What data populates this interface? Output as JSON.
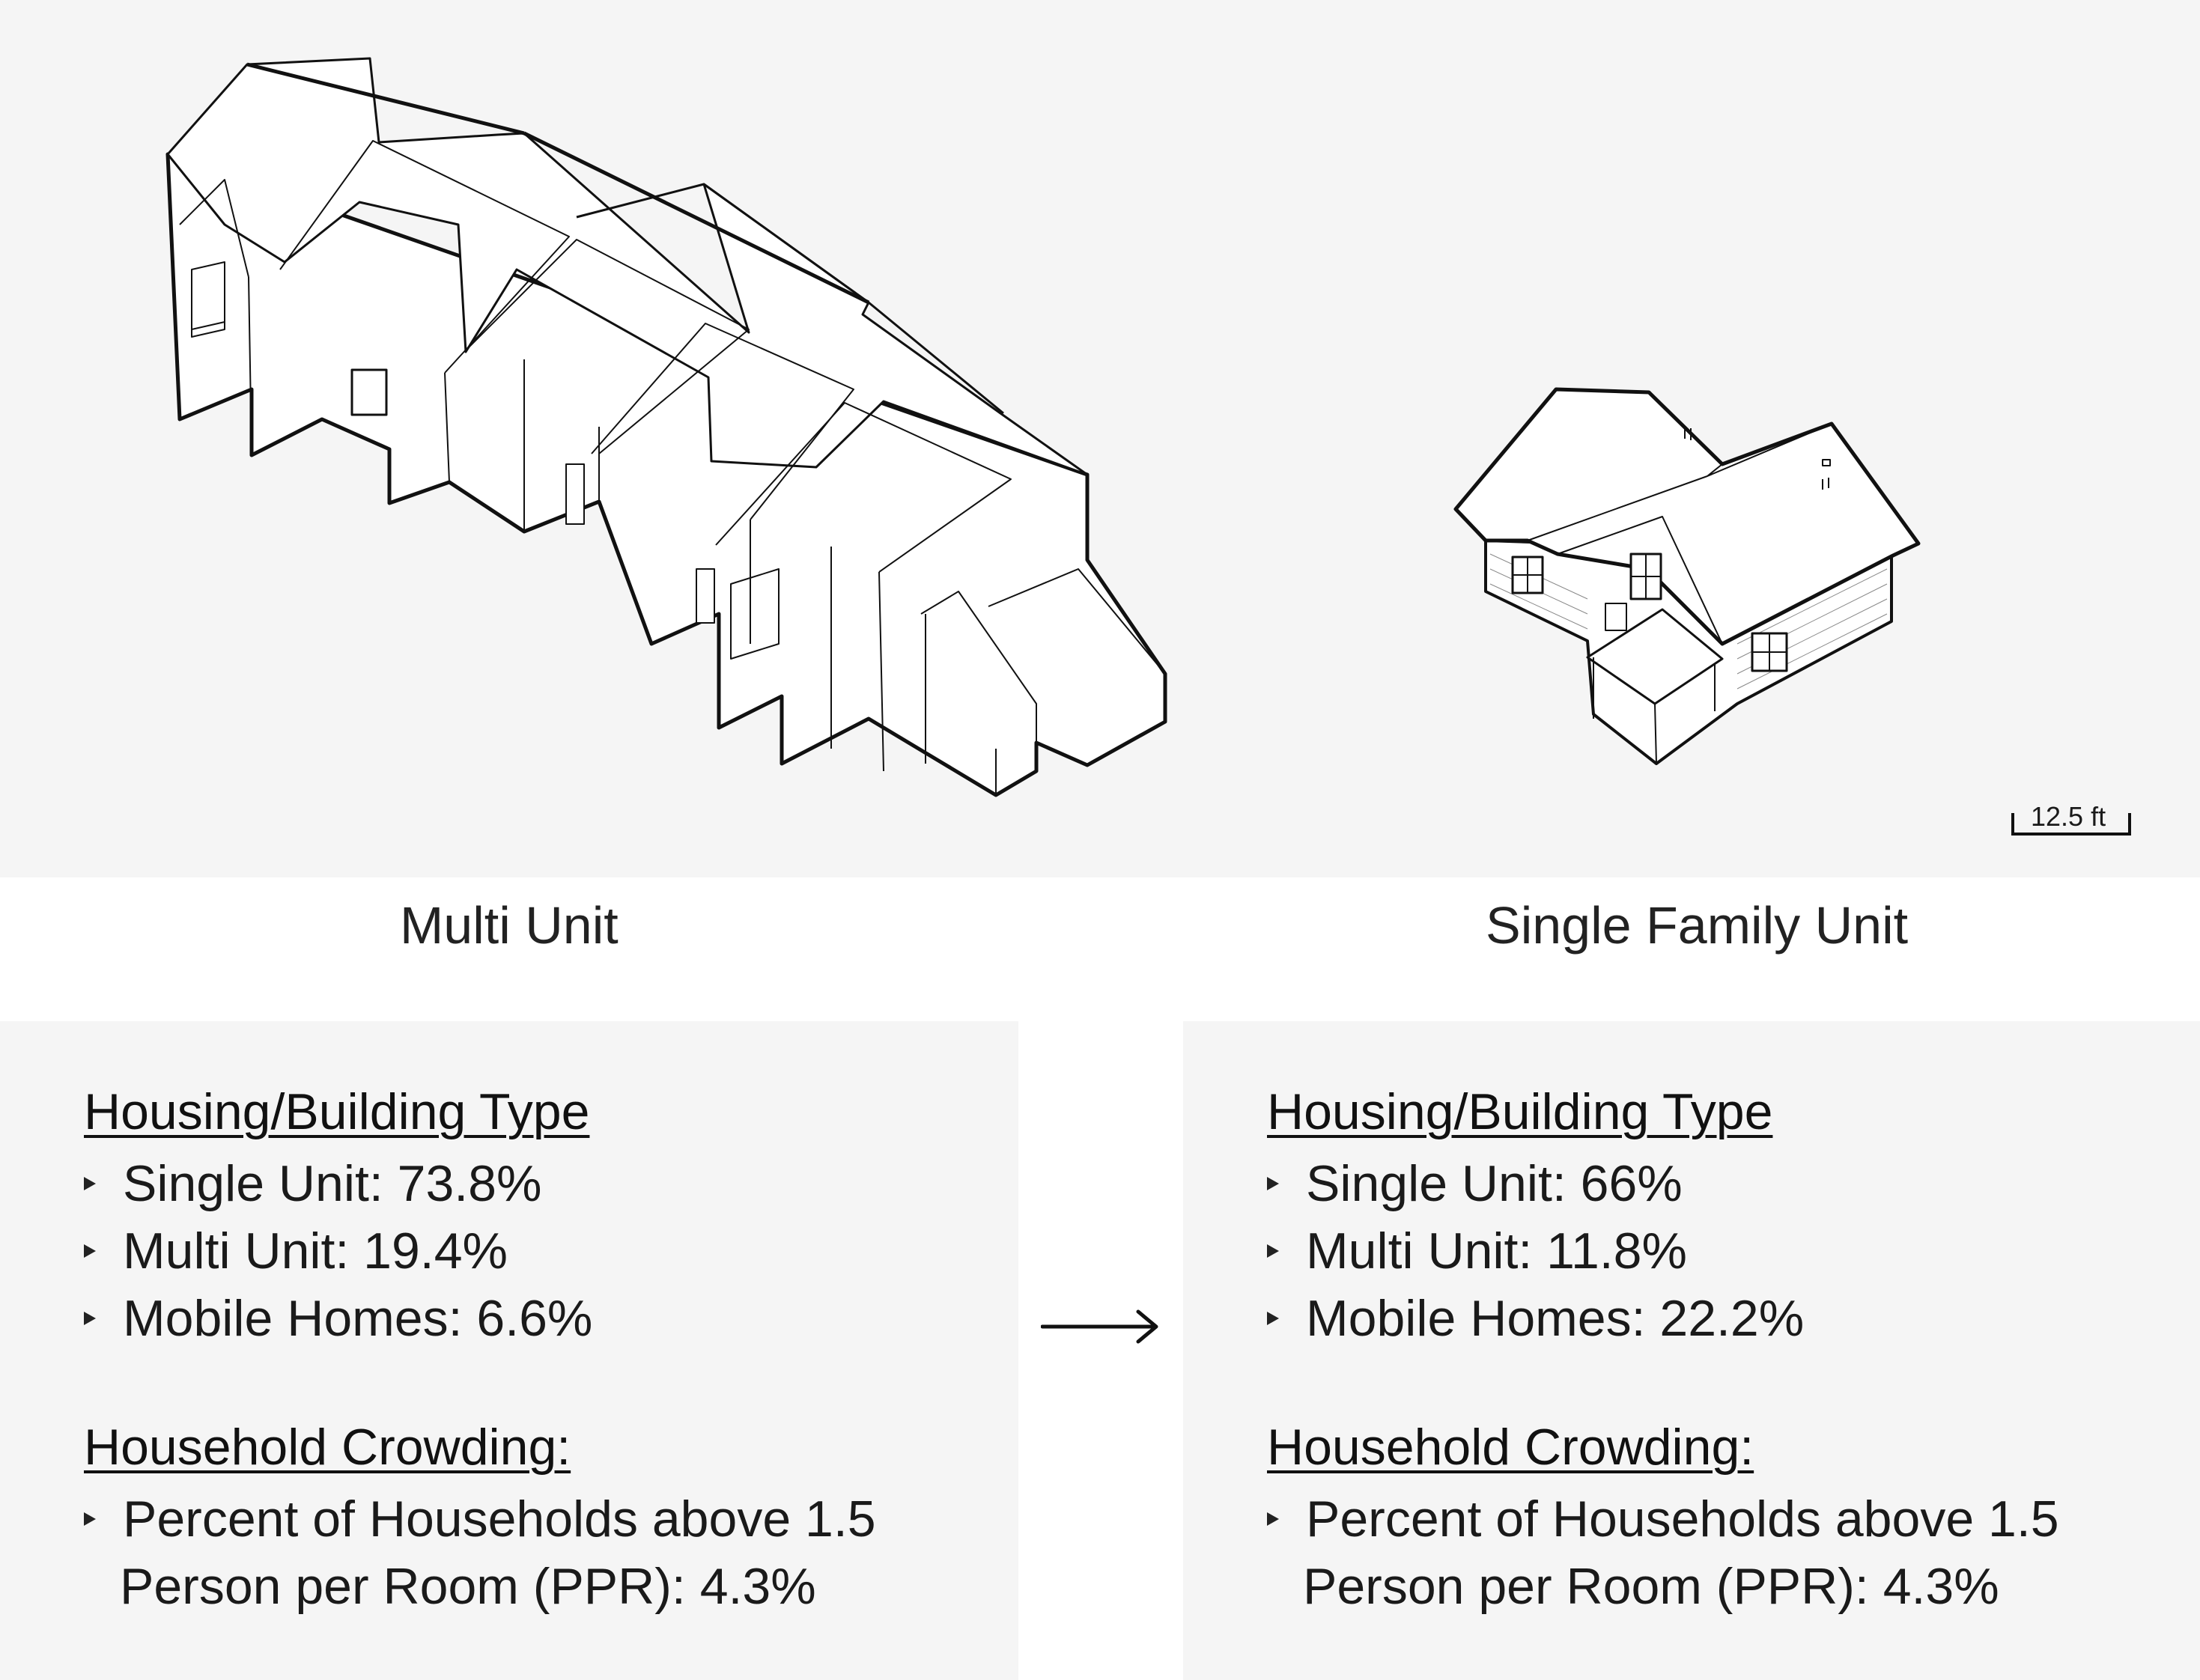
{
  "scale_bar": {
    "label": "12.5 ft"
  },
  "captions": {
    "left": "Multi Unit",
    "right": "Single Family Unit"
  },
  "panels": [
    {
      "housing_heading": "Housing/Building Type",
      "housing_items": [
        "Single Unit: 73.8%",
        "Multi Unit: 19.4%",
        "Mobile Homes: 6.6%"
      ],
      "crowding_heading": "Household Crowding:",
      "crowding_line1": "Percent of Households above 1.5",
      "crowding_line2": "Person per Room (PPR): 4.3%"
    },
    {
      "housing_heading": "Housing/Building Type",
      "housing_items": [
        "Single Unit: 66%",
        "Multi Unit: 11.8%",
        "Mobile Homes: 22.2%"
      ],
      "crowding_heading": "Household Crowding:",
      "crowding_line1": "Percent of Households above 1.5",
      "crowding_line2": "Person per Room (PPR): 4.3%"
    }
  ]
}
